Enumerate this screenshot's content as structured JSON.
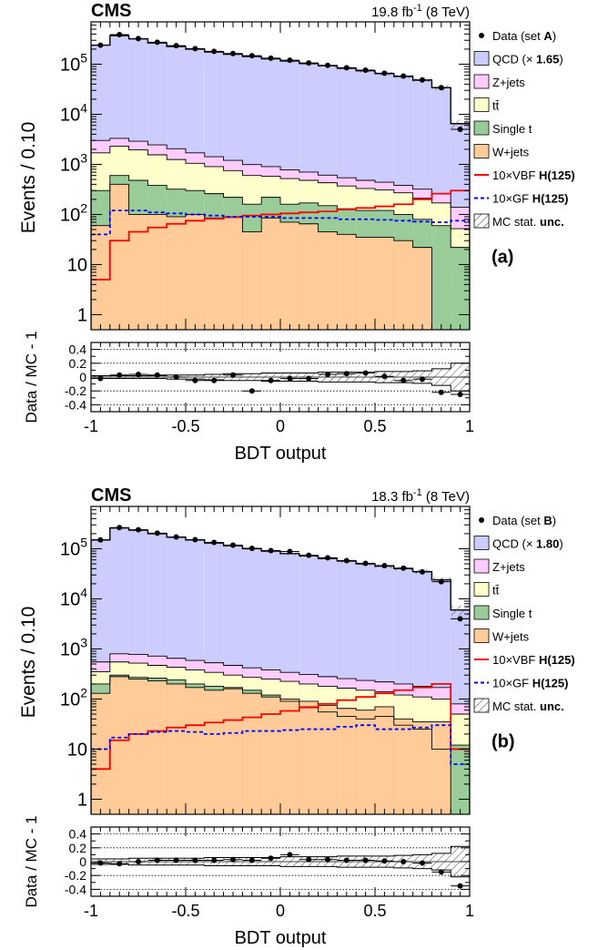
{
  "chart_data": [
    {
      "type": "area",
      "panel_label": "(a)",
      "experiment": "CMS",
      "lumi_label": "19.8 fb-1 (8 TeV)",
      "lumi_value": "19.8",
      "lumi_unit": "fb",
      "lumi_exponent": "-1",
      "energy": "(8 TeV)",
      "xlabel": "BDT output",
      "ylabel": "Events / 0.10",
      "ratio_ylabel": "Data / MC - 1",
      "log_y": true,
      "xlim": [
        -1,
        1
      ],
      "ylim": [
        0.5,
        700000
      ],
      "ratio_ylim": [
        -0.5,
        0.5
      ],
      "x_tick_labels": [
        "-1",
        "-0.5",
        "0",
        "0.5",
        "1"
      ],
      "x_ticks": [
        -1,
        -0.5,
        0,
        0.5,
        1
      ],
      "y_tick_labels": [
        "1",
        "10",
        "10^2",
        "10^3",
        "10^4",
        "10^5"
      ],
      "y_ticks": [
        1,
        10,
        100,
        1000,
        10000,
        100000
      ],
      "ratio_tick_labels": [
        "-0.4",
        "-0.2",
        "0",
        "0.2",
        "0.4"
      ],
      "ratio_ticks": [
        -0.4,
        -0.2,
        0,
        0.2,
        0.4
      ],
      "bin_edges": [
        -1.0,
        -0.9,
        -0.8,
        -0.7,
        -0.6,
        -0.5,
        -0.4,
        -0.3,
        -0.2,
        -0.1,
        0.0,
        0.1,
        0.2,
        0.3,
        0.4,
        0.5,
        0.6,
        0.7,
        0.8,
        0.9,
        1.0
      ],
      "legend": {
        "position": "right",
        "entries": [
          {
            "key": "data",
            "label": "Data (set ",
            "bold": "A",
            "suffix": ")"
          },
          {
            "key": "qcd",
            "label": "QCD (× ",
            "bold": "1.65",
            "suffix": ")"
          },
          {
            "key": "zjets",
            "label": "Z+jets"
          },
          {
            "key": "ttbar",
            "label": "tt̄"
          },
          {
            "key": "singlet",
            "label": "Single t"
          },
          {
            "key": "wjets",
            "label": "W+jets"
          },
          {
            "key": "vbf",
            "label": "10×VBF ",
            "bold": "H(125)"
          },
          {
            "key": "gf",
            "label": "10×GF ",
            "bold": "H(125)"
          },
          {
            "key": "mcunc",
            "label": "MC stat. ",
            "bold": "unc."
          }
        ]
      },
      "colors": {
        "qcd": "#ccccff",
        "zjets": "#ffccff",
        "ttbar": "#ffffcc",
        "singlet": "#99cc99",
        "wjets": "#ffcc99",
        "vbf": "#ff0000",
        "gf": "#0000ff"
      },
      "stacks": {
        "wjets": [
          60,
          400,
          100,
          100,
          90,
          100,
          85,
          90,
          45,
          85,
          70,
          65,
          45,
          40,
          35,
          35,
          30,
          22,
          0.5,
          0.5
        ],
        "singlet": [
          300,
          600,
          480,
          380,
          320,
          300,
          260,
          220,
          160,
          220,
          160,
          170,
          150,
          130,
          120,
          120,
          100,
          80,
          60,
          22
        ],
        "ttbar": [
          1700,
          2300,
          1950,
          1550,
          1250,
          1050,
          900,
          750,
          600,
          580,
          520,
          480,
          430,
          370,
          330,
          310,
          270,
          210,
          170,
          52
        ],
        "zjets": [
          3000,
          3300,
          2900,
          2450,
          2050,
          1700,
          1420,
          1200,
          990,
          900,
          780,
          700,
          610,
          540,
          480,
          440,
          380,
          320,
          260,
          140
        ],
        "total": [
          240000,
          370000,
          320000,
          265000,
          225000,
          200000,
          175000,
          158000,
          142000,
          128000,
          116000,
          103000,
          93000,
          83000,
          74000,
          65000,
          57000,
          48000,
          34000,
          6500
        ]
      },
      "signals": {
        "vbf": [
          5,
          30,
          45,
          55,
          65,
          75,
          82,
          88,
          95,
          100,
          105,
          110,
          115,
          125,
          135,
          145,
          160,
          200,
          260,
          300
        ],
        "gf": [
          40,
          120,
          120,
          110,
          105,
          100,
          95,
          90,
          90,
          90,
          85,
          85,
          85,
          80,
          80,
          78,
          75,
          72,
          70,
          75
        ]
      },
      "data_points": [
        240000,
        390000,
        325000,
        275000,
        235000,
        205000,
        180000,
        163000,
        148000,
        132000,
        120000,
        106000,
        95000,
        85000,
        76000,
        66000,
        58000,
        48500,
        34000,
        5000
      ],
      "ratio_points": [
        -0.02,
        0.03,
        0.04,
        0.03,
        0.0,
        -0.05,
        -0.05,
        0.03,
        -0.2,
        -0.05,
        -0.02,
        -0.02,
        0.04,
        0.05,
        0.06,
        0.01,
        -0.05,
        -0.03,
        -0.22,
        -0.25
      ],
      "ratio_unc": [
        0.02,
        0.02,
        0.02,
        0.02,
        0.03,
        0.03,
        0.04,
        0.05,
        0.05,
        0.06,
        0.06,
        0.06,
        0.07,
        0.07,
        0.07,
        0.08,
        0.08,
        0.09,
        0.12,
        0.2
      ]
    },
    {
      "type": "area",
      "panel_label": "(b)",
      "experiment": "CMS",
      "lumi_label": "18.3 fb-1 (8 TeV)",
      "lumi_value": "18.3",
      "lumi_unit": "fb",
      "lumi_exponent": "-1",
      "energy": "(8 TeV)",
      "xlabel": "BDT output",
      "ylabel": "Events / 0.10",
      "ratio_ylabel": "Data / MC - 1",
      "log_y": true,
      "xlim": [
        -1,
        1
      ],
      "ylim": [
        0.5,
        700000
      ],
      "ratio_ylim": [
        -0.5,
        0.5
      ],
      "x_tick_labels": [
        "-1",
        "-0.5",
        "0",
        "0.5",
        "1"
      ],
      "x_ticks": [
        -1,
        -0.5,
        0,
        0.5,
        1
      ],
      "y_tick_labels": [
        "1",
        "10",
        "10^2",
        "10^3",
        "10^4",
        "10^5"
      ],
      "y_ticks": [
        1,
        10,
        100,
        1000,
        10000,
        100000
      ],
      "ratio_tick_labels": [
        "-0.4",
        "-0.2",
        "0",
        "0.2",
        "0.4"
      ],
      "ratio_ticks": [
        -0.4,
        -0.2,
        0,
        0.2,
        0.4
      ],
      "bin_edges": [
        -1.0,
        -0.9,
        -0.8,
        -0.7,
        -0.6,
        -0.5,
        -0.4,
        -0.3,
        -0.2,
        -0.1,
        0.0,
        0.1,
        0.2,
        0.3,
        0.4,
        0.5,
        0.6,
        0.7,
        0.8,
        0.9,
        1.0
      ],
      "legend": {
        "position": "right",
        "entries": [
          {
            "key": "data",
            "label": "Data (set ",
            "bold": "B",
            "suffix": ")"
          },
          {
            "key": "qcd",
            "label": "QCD (× ",
            "bold": "1.80",
            "suffix": ")"
          },
          {
            "key": "zjets",
            "label": "Z+jets"
          },
          {
            "key": "ttbar",
            "label": "tt̄"
          },
          {
            "key": "singlet",
            "label": "Single t"
          },
          {
            "key": "wjets",
            "label": "W+jets"
          },
          {
            "key": "vbf",
            "label": "10×VBF ",
            "bold": "H(125)"
          },
          {
            "key": "gf",
            "label": "10×GF ",
            "bold": "H(125)"
          },
          {
            "key": "mcunc",
            "label": "MC stat. ",
            "bold": "unc."
          }
        ]
      },
      "colors": {
        "qcd": "#ccccff",
        "zjets": "#ffccff",
        "ttbar": "#ffffcc",
        "singlet": "#99cc99",
        "wjets": "#ffcc99",
        "vbf": "#ff0000",
        "gf": "#0000ff"
      },
      "stacks": {
        "wjets": [
          130,
          280,
          250,
          230,
          200,
          170,
          150,
          160,
          130,
          110,
          100,
          90,
          75,
          65,
          60,
          70,
          40,
          35,
          35,
          0.5
        ],
        "singlet": [
          200,
          300,
          270,
          260,
          240,
          200,
          180,
          170,
          150,
          120,
          90,
          70,
          55,
          45,
          40,
          45,
          30,
          25,
          10,
          12
        ],
        "ttbar": [
          350,
          550,
          520,
          470,
          430,
          380,
          340,
          300,
          270,
          250,
          225,
          200,
          180,
          165,
          150,
          140,
          120,
          110,
          100,
          50
        ],
        "zjets": [
          550,
          800,
          780,
          720,
          650,
          590,
          530,
          470,
          420,
          380,
          340,
          310,
          280,
          255,
          235,
          220,
          200,
          180,
          170,
          80
        ],
        "total": [
          150000,
          260000,
          235000,
          200000,
          170000,
          150000,
          130000,
          115000,
          100000,
          90000,
          80000,
          72000,
          64000,
          57000,
          50000,
          45000,
          40000,
          35000,
          24000,
          6000
        ]
      },
      "signals": {
        "vbf": [
          4,
          15,
          20,
          23,
          27,
          30,
          34,
          38,
          43,
          50,
          58,
          68,
          80,
          95,
          110,
          130,
          150,
          170,
          200,
          10
        ],
        "gf": [
          10,
          17,
          20,
          22,
          23,
          22,
          20,
          21,
          23,
          23,
          24,
          25,
          25,
          28,
          30,
          25,
          25,
          27,
          30,
          5
        ]
      },
      "data_points": [
        150000,
        265000,
        240000,
        205000,
        172000,
        152000,
        134000,
        118000,
        102000,
        92000,
        88000,
        74000,
        66000,
        58000,
        51000,
        46000,
        41000,
        34500,
        22000,
        4000
      ],
      "ratio_points": [
        -0.02,
        -0.03,
        0.0,
        0.02,
        0.02,
        0.02,
        0.02,
        0.03,
        0.02,
        0.05,
        0.1,
        0.03,
        0.03,
        0.02,
        0.02,
        0.01,
        0.0,
        -0.02,
        -0.15,
        -0.35
      ],
      "ratio_unc": [
        0.04,
        0.04,
        0.05,
        0.05,
        0.05,
        0.05,
        0.06,
        0.06,
        0.06,
        0.06,
        0.07,
        0.07,
        0.07,
        0.08,
        0.08,
        0.08,
        0.09,
        0.1,
        0.12,
        0.22
      ]
    }
  ]
}
